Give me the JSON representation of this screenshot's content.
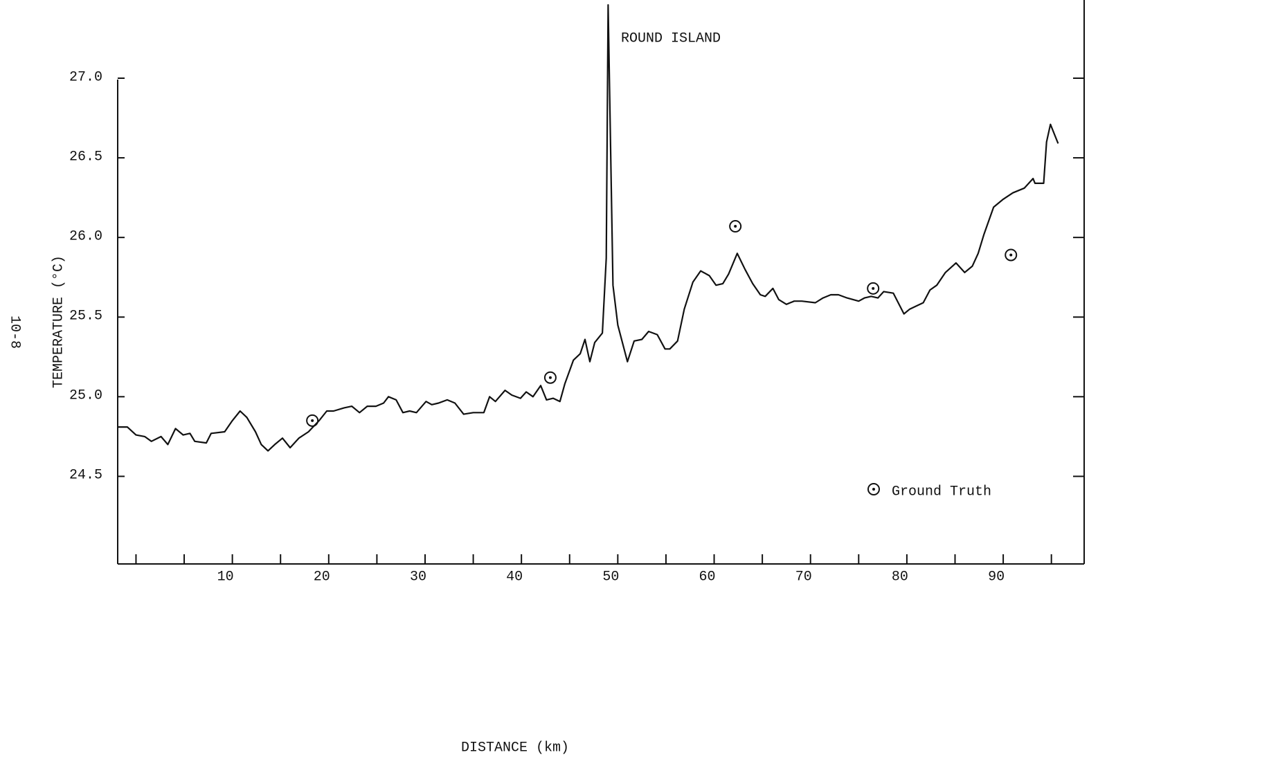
{
  "page_label": "10-8",
  "chart_data": {
    "type": "line",
    "x_label": "DISTANCE (km)",
    "y_label": "TEMPERATURE (°C)",
    "annotation": "ROUND ISLAND",
    "xlim": [
      -1.9,
      98.4
    ],
    "ylim": [
      23.95,
      27.0
    ],
    "xticks": [
      10,
      20,
      30,
      40,
      50,
      60,
      70,
      80,
      90
    ],
    "xminor_ticks": [
      0,
      5,
      15,
      25,
      35,
      45,
      55,
      65,
      75,
      85,
      95
    ],
    "yticks": [
      {
        "value": 27,
        "label": "27.0"
      },
      26.5,
      {
        "value": 26,
        "label": "26.0"
      },
      25.5,
      {
        "value": 25,
        "label": "25.0"
      },
      24.5
    ],
    "legend": "bottom-right",
    "series": [
      {
        "type": "line",
        "color": "#111111",
        "x": [
          -1.9,
          -0.9,
          0,
          0.9,
          1.6,
          2.6,
          3.3,
          4.1,
          4.9,
          5.6,
          6.1,
          7.3,
          7.8,
          9.2,
          10.0,
          10.8,
          11.5,
          12.4,
          13.0,
          13.7,
          14.4,
          15.2,
          16.0,
          16.9,
          17.9,
          19.0,
          19.8,
          20.5,
          21.6,
          22.4,
          23.2,
          24.0,
          24.9,
          25.7,
          26.2,
          27.0,
          27.7,
          28.4,
          29.1,
          30.1,
          30.7,
          31.4,
          32.3,
          33.1,
          34.0,
          35.0,
          36.1,
          36.7,
          37.3,
          38.3,
          39.0,
          39.9,
          40.5,
          41.2,
          42.0,
          42.6,
          43.3,
          44.0,
          44.5,
          45.4,
          46.1,
          46.6,
          47.1,
          47.6,
          48.4,
          48.8,
          49.0,
          49.5,
          50.0,
          51.0,
          51.7,
          52.5,
          53.2,
          54.1,
          54.9,
          55.4,
          56.2,
          56.9,
          57.8,
          58.6,
          59.5,
          60.2,
          60.9,
          61.5,
          62.4,
          63.2,
          64.0,
          64.8,
          65.3,
          66.1,
          66.7,
          67.5,
          68.3,
          69.1,
          70.5,
          71.3,
          72.1,
          72.9,
          73.8,
          75.0,
          75.6,
          76.3,
          77.0,
          77.6,
          78.6,
          79.7,
          80.3,
          81.0,
          81.7,
          82.4,
          83.1,
          84.0,
          85.1,
          86.0,
          86.8,
          87.4,
          88.0,
          89.0,
          90.0,
          91.0,
          92.2,
          93.1,
          93.3,
          94.2,
          94.5,
          94.9,
          95.7
        ],
        "values": [
          24.81,
          24.81,
          24.76,
          24.75,
          24.72,
          24.75,
          24.7,
          24.8,
          24.76,
          24.77,
          24.72,
          24.71,
          24.77,
          24.78,
          24.85,
          24.91,
          24.87,
          24.78,
          24.7,
          24.66,
          24.7,
          24.74,
          24.68,
          24.74,
          24.78,
          24.85,
          24.91,
          24.91,
          24.93,
          24.94,
          24.9,
          24.94,
          24.94,
          24.96,
          25.0,
          24.98,
          24.9,
          24.91,
          24.9,
          24.97,
          24.95,
          24.96,
          24.98,
          24.96,
          24.89,
          24.9,
          24.9,
          25.0,
          24.97,
          25.04,
          25.01,
          24.99,
          25.03,
          25.0,
          25.07,
          24.98,
          24.99,
          24.97,
          25.08,
          25.23,
          25.27,
          25.36,
          25.22,
          25.34,
          25.4,
          25.87,
          27.46,
          25.7,
          25.45,
          25.22,
          25.35,
          25.36,
          25.41,
          25.39,
          25.3,
          25.3,
          25.35,
          25.55,
          25.72,
          25.79,
          25.76,
          25.7,
          25.71,
          25.77,
          25.9,
          25.8,
          25.71,
          25.64,
          25.63,
          25.68,
          25.61,
          25.58,
          25.6,
          25.6,
          25.59,
          25.62,
          25.64,
          25.64,
          25.62,
          25.6,
          25.62,
          25.63,
          25.62,
          25.66,
          25.65,
          25.52,
          25.55,
          25.57,
          25.59,
          25.67,
          25.7,
          25.78,
          25.84,
          25.78,
          25.82,
          25.9,
          26.02,
          26.19,
          26.24,
          26.28,
          26.31,
          26.37,
          26.34,
          26.34,
          26.6,
          26.71,
          26.59
        ]
      },
      {
        "type": "scatter",
        "name": "Ground Truth",
        "color": "#111111",
        "x": [
          18.3,
          43.0,
          62.2,
          76.5,
          90.8
        ],
        "values": [
          24.85,
          25.12,
          26.07,
          25.68,
          25.89
        ]
      }
    ]
  }
}
